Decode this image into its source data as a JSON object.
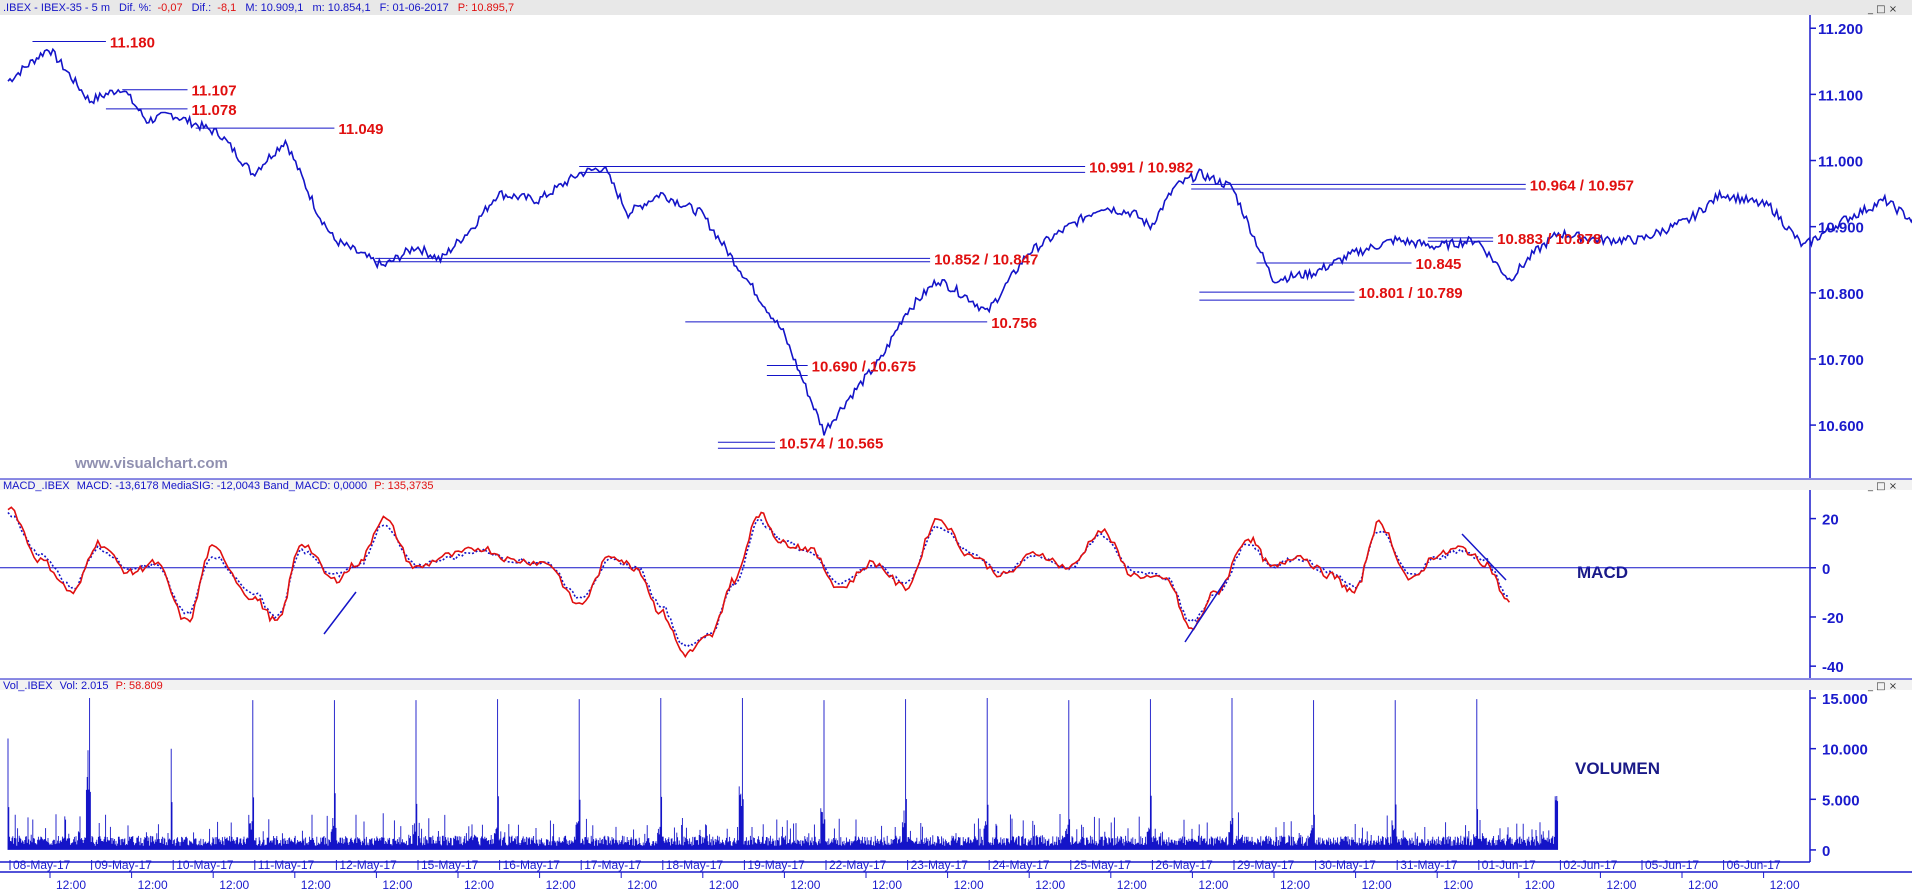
{
  "header": {
    "symbol": ".IBEX - IBEX-35 -  5 m",
    "dif_pct_label": "Dif. %:",
    "dif_pct": "-0,07",
    "dif_label": "Dif.:",
    "dif": "-8,1",
    "max": "M: 10.909,1",
    "min": "m: 10.854,1",
    "date": "F: 01-06-2017",
    "price": "P: 10.895,7"
  },
  "watermark": "www.visualchart.com",
  "macd_header": {
    "prefix": "MACD_.IBEX",
    "values": "MACD: -13,6178  MediaSIG: -12,0043  Band_MACD: 0,0000",
    "price": "P: 135,3735"
  },
  "vol_header": {
    "prefix": "Vol_.IBEX",
    "values": "Vol: 2.015",
    "price": "P: 58.809"
  },
  "panel_titles": {
    "macd": "MACD",
    "volume": "VOLUMEN"
  },
  "window_buttons": "_ □ ×",
  "colors": {
    "price": "#1414c8",
    "levels": "#e01010",
    "macd": "#e01010",
    "signal": "#1414c8",
    "axis": "#1a1acc",
    "volume": "#1414c8"
  },
  "chart_data": [
    {
      "type": "line",
      "panel": "price",
      "series": [
        {
          "x": [
            0,
            0.5,
            1,
            1.4,
            1.7,
            2,
            2.6,
            3,
            3.4,
            3.8,
            4,
            4.6,
            5,
            5.3,
            5.7,
            6,
            6.5,
            7,
            7.3,
            7.6,
            8,
            8.5,
            9,
            9.5,
            10,
            10.3,
            10.7,
            11,
            11.4,
            11.8,
            12,
            12.5,
            13,
            13.4,
            13.8,
            14,
            14.3,
            14.6,
            15,
            15.5,
            16,
            16.5,
            17,
            17.5,
            18,
            18.4,
            18.7,
            19,
            19.5,
            20,
            20.6,
            21,
            21.6,
            22,
            22.5,
            23,
            23.5
          ],
          "y": [
            11120,
            11170,
            11090,
            11110,
            11060,
            11070,
            11040,
            10980,
            11030,
            10920,
            10880,
            10840,
            10870,
            10850,
            10900,
            10950,
            10940,
            10980,
            10990,
            10920,
            10950,
            10920,
            10830,
            10740,
            10590,
            10640,
            10700,
            10770,
            10820,
            10790,
            10770,
            10860,
            10900,
            10930,
            10920,
            10900,
            10960,
            10980,
            10960,
            10820,
            10830,
            10860,
            10880,
            10870,
            10880,
            10820,
            10860,
            10890,
            10880,
            10880,
            10910,
            10950,
            10930,
            10870,
            10910,
            10940,
            10895
          ]
        }
      ],
      "levels": [
        {
          "label": "11.180",
          "value": 11180,
          "x_from": 0.3,
          "x_to": 1.2
        },
        {
          "label": "11.107",
          "value": 11107,
          "x_from": 1.4,
          "x_to": 2.2
        },
        {
          "label": "11.078",
          "value": 11078,
          "x_from": 1.2,
          "x_to": 2.2
        },
        {
          "label": "11.049",
          "value": 11049,
          "x_from": 2.3,
          "x_to": 4
        },
        {
          "label": "10.991 / 10.982",
          "value": 10991,
          "value2": 10982,
          "x_from": 7,
          "x_to": 13.2
        },
        {
          "label": "10.964 / 10.957",
          "value": 10964,
          "value2": 10957,
          "x_from": 14.5,
          "x_to": 18.6
        },
        {
          "label": "10.883 / 10.878",
          "value": 10883,
          "value2": 10878,
          "x_from": 17.4,
          "x_to": 18.2
        },
        {
          "label": "10.852 / 10.847",
          "value": 10852,
          "value2": 10847,
          "x_from": 4.5,
          "x_to": 11.3
        },
        {
          "label": "10.845",
          "value": 10845,
          "x_from": 15.3,
          "x_to": 17.2
        },
        {
          "label": "10.801 / 10.789",
          "value": 10801,
          "value2": 10789,
          "x_from": 14.6,
          "x_to": 16.5
        },
        {
          "label": "10.756",
          "value": 10756,
          "x_from": 8.3,
          "x_to": 12
        },
        {
          "label": "10.690 / 10.675",
          "value": 10690,
          "value2": 10675,
          "x_from": 9.3,
          "x_to": 9.8
        },
        {
          "label": "10.574 / 10.565",
          "value": 10574,
          "value2": 10565,
          "x_from": 8.7,
          "x_to": 9.4
        }
      ],
      "ylim": [
        10520,
        11220
      ],
      "yticks": [
        "11.200",
        "11.100",
        "11.000",
        "10.900",
        "10.800",
        "10.700",
        "10.600"
      ],
      "ytick_values": [
        11200,
        11100,
        11000,
        10900,
        10800,
        10700,
        10600
      ]
    },
    {
      "type": "line",
      "panel": "macd",
      "title": "MACD",
      "series": [
        {
          "name": "MACD",
          "x": [
            0,
            0.4,
            0.8,
            1.1,
            1.5,
            1.8,
            2.2,
            2.5,
            3,
            3.3,
            3.6,
            4,
            4.3,
            4.6,
            5,
            5.4,
            5.8,
            6.2,
            6.6,
            7,
            7.4,
            7.7,
            8,
            8.3,
            8.6,
            8.9,
            9.2,
            9.5,
            9.8,
            10.2,
            10.6,
            11,
            11.4,
            11.8,
            12.2,
            12.6,
            13,
            13.4,
            13.8,
            14.2,
            14.5,
            14.8,
            15.2,
            15.5,
            15.8,
            16.2,
            16.5,
            16.8,
            17.2,
            17.5,
            17.8,
            18.1,
            18.4
          ],
          "y": [
            25,
            3,
            -10,
            10,
            -2,
            2,
            -22,
            8,
            -12,
            -22,
            10,
            -5,
            2,
            20,
            0,
            5,
            8,
            3,
            2,
            -15,
            5,
            0,
            -18,
            -35,
            -28,
            -5,
            22,
            10,
            8,
            -8,
            2,
            -8,
            20,
            5,
            -3,
            6,
            0,
            15,
            -3,
            -5,
            -25,
            -10,
            12,
            0,
            5,
            -3,
            -10,
            18,
            -5,
            5,
            8,
            2,
            -14
          ]
        },
        {
          "name": "MediaSIG",
          "x": [
            0,
            0.4,
            0.8,
            1.1,
            1.5,
            1.8,
            2.2,
            2.5,
            3,
            3.3,
            3.6,
            4,
            4.3,
            4.6,
            5,
            5.4,
            5.8,
            6.2,
            6.6,
            7,
            7.4,
            7.7,
            8,
            8.3,
            8.6,
            8.9,
            9.2,
            9.5,
            9.8,
            10.2,
            10.6,
            11,
            11.4,
            11.8,
            12.2,
            12.6,
            13,
            13.4,
            13.8,
            14.2,
            14.5,
            14.8,
            15.2,
            15.5,
            15.8,
            16.2,
            16.5,
            16.8,
            17.2,
            17.5,
            17.8,
            18.1,
            18.4
          ],
          "y": [
            22,
            5,
            -8,
            8,
            0,
            1,
            -19,
            5,
            -10,
            -20,
            7,
            -3,
            1,
            17,
            1,
            4,
            7,
            3,
            2,
            -12,
            3,
            0,
            -15,
            -32,
            -27,
            -7,
            19,
            11,
            7,
            -6,
            1,
            -6,
            17,
            6,
            -2,
            5,
            0,
            13,
            -1,
            -4,
            -22,
            -11,
            10,
            1,
            4,
            -2,
            -8,
            15,
            -3,
            4,
            7,
            3,
            -12
          ]
        }
      ],
      "ylim": [
        -44,
        30
      ],
      "yticks": [
        "20",
        "0",
        "-20",
        "-40"
      ],
      "ytick_values": [
        20,
        0,
        -20,
        -40
      ]
    },
    {
      "type": "bar",
      "panel": "volume",
      "title": "VOLUMEN",
      "ylim": [
        -600,
        15400
      ],
      "yticks": [
        "15.000",
        "10.000",
        "5.000",
        "0"
      ],
      "ytick_values": [
        15000,
        10000,
        5000,
        0
      ],
      "session_open_spikes": [
        11000,
        15000,
        10000,
        14800,
        14800,
        14800,
        14900,
        14900,
        15000,
        15000,
        14800,
        14900,
        15000,
        14800,
        14900,
        15000,
        14800,
        14800,
        14900
      ],
      "session_close_spikes": [
        10000,
        2000,
        3000,
        3500,
        3000,
        2800,
        3200,
        2500,
        8000,
        5000,
        4000,
        3000,
        3000,
        2800,
        3000,
        2500,
        3000,
        2000,
        6000
      ]
    }
  ],
  "x_axis": {
    "dates": [
      "08-May-17",
      "09-May-17",
      "10-May-17",
      "11-May-17",
      "12-May-17",
      "15-May-17",
      "16-May-17",
      "17-May-17",
      "18-May-17",
      "19-May-17",
      "22-May-17",
      "23-May-17",
      "24-May-17",
      "25-May-17",
      "26-May-17",
      "29-May-17",
      "30-May-17",
      "31-May-17",
      "01-Jun-17",
      "02-Jun-17",
      "05-Jun-17",
      "06-Jun-17"
    ],
    "time_label": "12:00"
  }
}
